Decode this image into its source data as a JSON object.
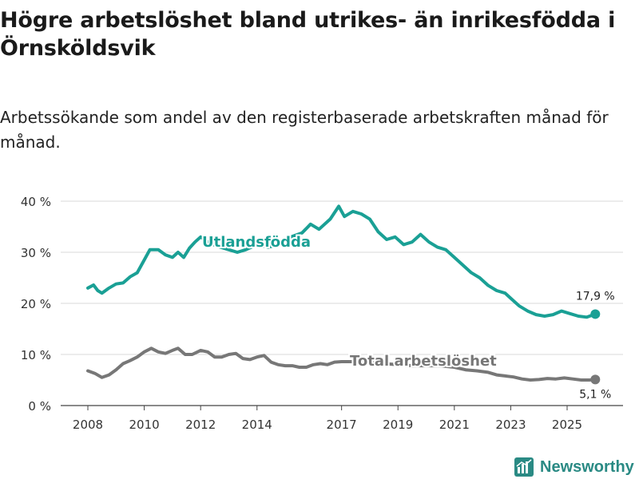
{
  "header": {
    "title": "Högre arbetslöshet bland utrikes- än inrikesfödda i Örnsköldsvik",
    "subtitle": "Arbetssökande som andel av den registerbaserade arbetskraften månad för månad."
  },
  "chart_data": {
    "type": "line",
    "xlabel": "",
    "ylabel": "",
    "ylim": [
      0,
      40
    ],
    "xlim": [
      2008,
      2026.2
    ],
    "y_ticks": [
      {
        "value": 0,
        "label": "0 %"
      },
      {
        "value": 10,
        "label": "10 %"
      },
      {
        "value": 20,
        "label": "20 %"
      },
      {
        "value": 30,
        "label": "30 %"
      },
      {
        "value": 40,
        "label": "40 %"
      }
    ],
    "x_ticks": [
      {
        "value": 2008,
        "label": "2008"
      },
      {
        "value": 2010,
        "label": "2010"
      },
      {
        "value": 2012,
        "label": "2012"
      },
      {
        "value": 2014,
        "label": "2014"
      },
      {
        "value": 2017,
        "label": "2017"
      },
      {
        "value": 2019,
        "label": "2019"
      },
      {
        "value": 2021,
        "label": "2021"
      },
      {
        "value": 2023,
        "label": "2023"
      },
      {
        "value": 2025,
        "label": "2025"
      }
    ],
    "grid": true,
    "series": [
      {
        "name": "Utlandsfödda",
        "color": "#1aa095",
        "end_label": "17,9 %",
        "points": [
          [
            2008.0,
            23.0
          ],
          [
            2008.2,
            23.6
          ],
          [
            2008.35,
            22.5
          ],
          [
            2008.5,
            22.0
          ],
          [
            2008.75,
            23.0
          ],
          [
            2009.0,
            23.8
          ],
          [
            2009.25,
            24.0
          ],
          [
            2009.5,
            25.2
          ],
          [
            2009.75,
            26.0
          ],
          [
            2010.0,
            28.5
          ],
          [
            2010.2,
            30.5
          ],
          [
            2010.5,
            30.5
          ],
          [
            2010.75,
            29.5
          ],
          [
            2011.0,
            29.0
          ],
          [
            2011.2,
            30.0
          ],
          [
            2011.4,
            29.0
          ],
          [
            2011.6,
            30.8
          ],
          [
            2011.8,
            32.0
          ],
          [
            2012.0,
            33.0
          ],
          [
            2012.3,
            31.8
          ],
          [
            2012.7,
            31.0
          ],
          [
            2013.0,
            30.5
          ],
          [
            2013.3,
            30.0
          ],
          [
            2013.6,
            30.5
          ],
          [
            2014.0,
            31.5
          ],
          [
            2014.4,
            31.0
          ],
          [
            2014.8,
            31.5
          ],
          [
            2015.2,
            33.0
          ],
          [
            2015.6,
            33.8
          ],
          [
            2015.9,
            35.5
          ],
          [
            2016.2,
            34.5
          ],
          [
            2016.6,
            36.5
          ],
          [
            2016.9,
            39.0
          ],
          [
            2017.1,
            37.0
          ],
          [
            2017.4,
            38.0
          ],
          [
            2017.7,
            37.5
          ],
          [
            2018.0,
            36.5
          ],
          [
            2018.3,
            34.0
          ],
          [
            2018.6,
            32.5
          ],
          [
            2018.9,
            33.0
          ],
          [
            2019.2,
            31.5
          ],
          [
            2019.5,
            32.0
          ],
          [
            2019.8,
            33.5
          ],
          [
            2020.1,
            32.0
          ],
          [
            2020.4,
            31.0
          ],
          [
            2020.7,
            30.5
          ],
          [
            2021.0,
            29.0
          ],
          [
            2021.3,
            27.5
          ],
          [
            2021.6,
            26.0
          ],
          [
            2021.9,
            25.0
          ],
          [
            2022.2,
            23.5
          ],
          [
            2022.5,
            22.5
          ],
          [
            2022.8,
            22.0
          ],
          [
            2023.0,
            21.0
          ],
          [
            2023.3,
            19.5
          ],
          [
            2023.6,
            18.5
          ],
          [
            2023.9,
            17.8
          ],
          [
            2024.2,
            17.5
          ],
          [
            2024.5,
            17.8
          ],
          [
            2024.8,
            18.5
          ],
          [
            2025.1,
            18.0
          ],
          [
            2025.4,
            17.5
          ],
          [
            2025.7,
            17.3
          ],
          [
            2026.0,
            17.9
          ]
        ]
      },
      {
        "name": "Total arbetslöshet",
        "color": "#777777",
        "end_label": "5,1 %",
        "points": [
          [
            2008.0,
            6.8
          ],
          [
            2008.25,
            6.3
          ],
          [
            2008.5,
            5.5
          ],
          [
            2008.75,
            6.0
          ],
          [
            2009.0,
            7.0
          ],
          [
            2009.25,
            8.2
          ],
          [
            2009.5,
            8.8
          ],
          [
            2009.75,
            9.5
          ],
          [
            2010.0,
            10.5
          ],
          [
            2010.25,
            11.2
          ],
          [
            2010.5,
            10.5
          ],
          [
            2010.75,
            10.2
          ],
          [
            2011.0,
            10.8
          ],
          [
            2011.2,
            11.2
          ],
          [
            2011.45,
            10.0
          ],
          [
            2011.7,
            10.0
          ],
          [
            2012.0,
            10.8
          ],
          [
            2012.25,
            10.5
          ],
          [
            2012.5,
            9.5
          ],
          [
            2012.75,
            9.5
          ],
          [
            2013.0,
            10.0
          ],
          [
            2013.25,
            10.2
          ],
          [
            2013.5,
            9.2
          ],
          [
            2013.75,
            9.0
          ],
          [
            2014.0,
            9.5
          ],
          [
            2014.25,
            9.8
          ],
          [
            2014.5,
            8.5
          ],
          [
            2014.75,
            8.0
          ],
          [
            2015.0,
            7.8
          ],
          [
            2015.25,
            7.8
          ],
          [
            2015.5,
            7.5
          ],
          [
            2015.75,
            7.5
          ],
          [
            2016.0,
            8.0
          ],
          [
            2016.25,
            8.2
          ],
          [
            2016.5,
            8.0
          ],
          [
            2016.75,
            8.5
          ],
          [
            2017.0,
            8.6
          ],
          [
            2017.25,
            8.6
          ],
          [
            2017.5,
            8.6
          ],
          [
            2017.75,
            8.5
          ],
          [
            2018.0,
            8.5
          ],
          [
            2018.5,
            8.2
          ],
          [
            2019.0,
            8.0
          ],
          [
            2019.5,
            7.8
          ],
          [
            2020.0,
            7.8
          ],
          [
            2020.5,
            7.8
          ],
          [
            2021.0,
            7.5
          ],
          [
            2021.4,
            7.0
          ],
          [
            2021.8,
            6.8
          ],
          [
            2022.2,
            6.5
          ],
          [
            2022.5,
            6.0
          ],
          [
            2022.8,
            5.8
          ],
          [
            2023.1,
            5.6
          ],
          [
            2023.4,
            5.2
          ],
          [
            2023.7,
            5.0
          ],
          [
            2024.0,
            5.1
          ],
          [
            2024.3,
            5.3
          ],
          [
            2024.6,
            5.2
          ],
          [
            2024.9,
            5.4
          ],
          [
            2025.2,
            5.2
          ],
          [
            2025.5,
            5.0
          ],
          [
            2025.8,
            5.0
          ],
          [
            2026.0,
            5.1
          ]
        ]
      }
    ]
  },
  "footer": {
    "brand": "Newsworthy"
  }
}
